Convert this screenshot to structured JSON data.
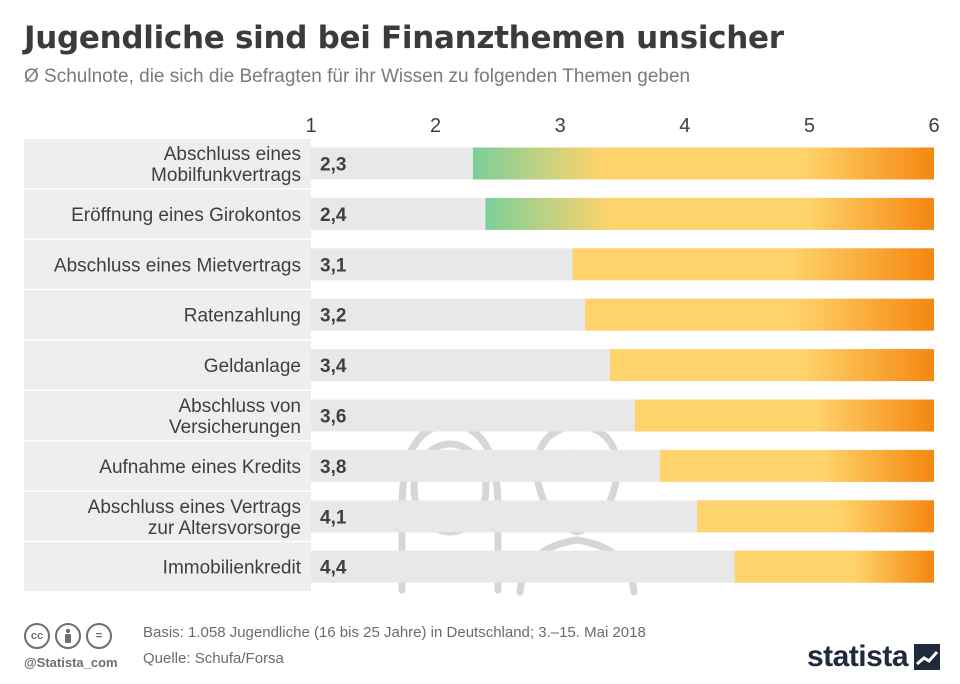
{
  "title": "Jugendliche sind bei Finanzthemen unsicher",
  "subtitle": "Ø Schulnote, die sich die Befragten für ihr Wissen zu folgenden Themen geben",
  "chart_data": {
    "type": "bar",
    "orientation": "horizontal",
    "categories": [
      "Abschluss eines Mobilfunkvertrags",
      "Eröffnung eines Girokontos",
      "Abschluss eines Mietvertrags",
      "Ratenzahlung",
      "Geldanlage",
      "Abschluss von Versicherungen",
      "Aufnahme eines Kredits",
      "Abschluss eines Vertrags zur Altersvorsorge",
      "Immobilienkredit"
    ],
    "category_lines": [
      [
        "Abschluss eines",
        "Mobilfunkvertrags"
      ],
      [
        "Eröffnung eines Girokontos"
      ],
      [
        "Abschluss eines Mietvertrags"
      ],
      [
        "Ratenzahlung"
      ],
      [
        "Geldanlage"
      ],
      [
        "Abschluss von",
        "Versicherungen"
      ],
      [
        "Aufnahme eines Kredits"
      ],
      [
        "Abschluss eines Vertrags",
        "zur Altersvorsorge"
      ],
      [
        "Immobilienkredit"
      ]
    ],
    "values": [
      2.3,
      2.4,
      3.1,
      3.2,
      3.4,
      3.6,
      3.8,
      4.1,
      4.4
    ],
    "value_labels": [
      "2,3",
      "2,4",
      "3,1",
      "3,2",
      "3,4",
      "3,6",
      "3,8",
      "4,1",
      "4,4"
    ],
    "xlim": [
      1,
      6
    ],
    "xticks": [
      "1",
      "2",
      "3",
      "4",
      "5",
      "6"
    ],
    "axis_position": "top",
    "grid": false,
    "colors": {
      "track": "#e8e8e8",
      "row_band": "#eeeeee",
      "green": "#7ccf9a",
      "yellow": "#ffd36b",
      "orange": "#f5870f",
      "label_text": "#3f3f3f",
      "value_text": "#3f3f3f"
    }
  },
  "footer": {
    "basis": "Basis: 1.058 Jugendliche (16 bis 25 Jahre) in Deutschland; 3.–15. Mai 2018",
    "source": "Quelle: Schufa/Forsa",
    "handle": "@Statista_com",
    "brand": "statista",
    "license_icons": [
      "cc",
      "by",
      "="
    ]
  }
}
